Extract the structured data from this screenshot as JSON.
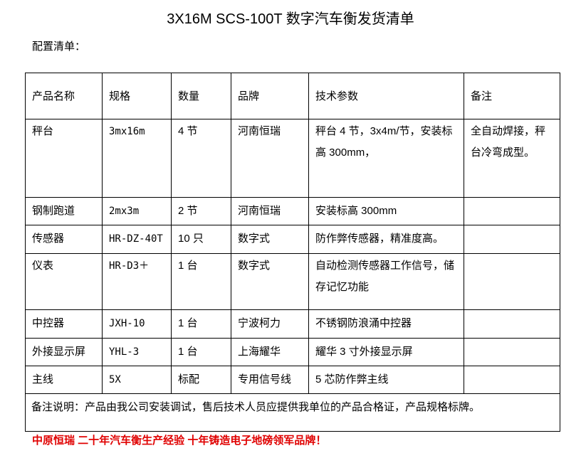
{
  "title": "3X16M SCS-100T 数字汽车衡发货清单",
  "subtitle": "配置清单：",
  "headers": [
    "产品名称",
    "规格",
    "数量",
    "品牌",
    "技术参数",
    "备注"
  ],
  "rows": [
    [
      "秤台",
      "3mx16m",
      "4 节",
      "河南恒瑞",
      "秤台 4 节，3x4m/节，安装标高 300mm，",
      "全自动焊接，秤台冷弯成型。"
    ],
    [
      "钢制跑道",
      "2mx3m",
      "2 节",
      "河南恒瑞",
      "安装标高 300mm",
      ""
    ],
    [
      "传感器",
      "HR-DZ-40T",
      "10 只",
      "数字式",
      "防作弊传感器，精准度高。",
      ""
    ],
    [
      "仪表",
      "HR-D3＋",
      "1 台",
      "数字式",
      "自动检测传感器工作信号，储存记忆功能",
      ""
    ],
    [
      "中控器",
      "JXH-10",
      "1 台",
      "宁波柯力",
      "不锈钢防浪涌中控器",
      ""
    ],
    [
      "外接显示屏",
      "YHL-3",
      "1 台",
      "上海耀华",
      "耀华 3 寸外接显示屏",
      ""
    ],
    [
      "主线",
      "5X",
      "标配",
      "专用信号线",
      "5 芯防作弊主线",
      ""
    ]
  ],
  "note": "备注说明：产品由我公司安装调试，售后技术人员应提供我单位的产品合格证，产品规格标牌。",
  "footer": "中原恒瑞 二十年汽车衡生产经验 十年铸造电子地磅领军品牌！",
  "colors": {
    "footer": "#e00000"
  }
}
